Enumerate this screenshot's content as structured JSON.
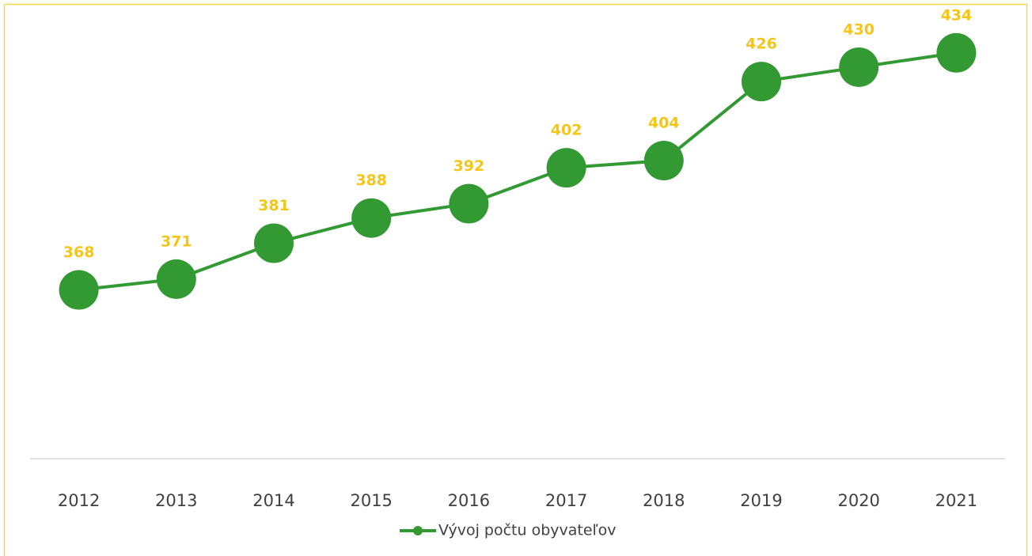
{
  "chart_data": {
    "type": "line",
    "categories": [
      "2012",
      "2013",
      "2014",
      "2015",
      "2016",
      "2017",
      "2018",
      "2019",
      "2020",
      "2021"
    ],
    "series": [
      {
        "name": "Vývoj počtu obyvateľov",
        "color": "#339933",
        "values": [
          368,
          371,
          381,
          388,
          392,
          402,
          404,
          426,
          430,
          434
        ]
      }
    ],
    "label_color": "#f5c518",
    "ylim": [
      321,
      441
    ],
    "legend": "bottom"
  }
}
